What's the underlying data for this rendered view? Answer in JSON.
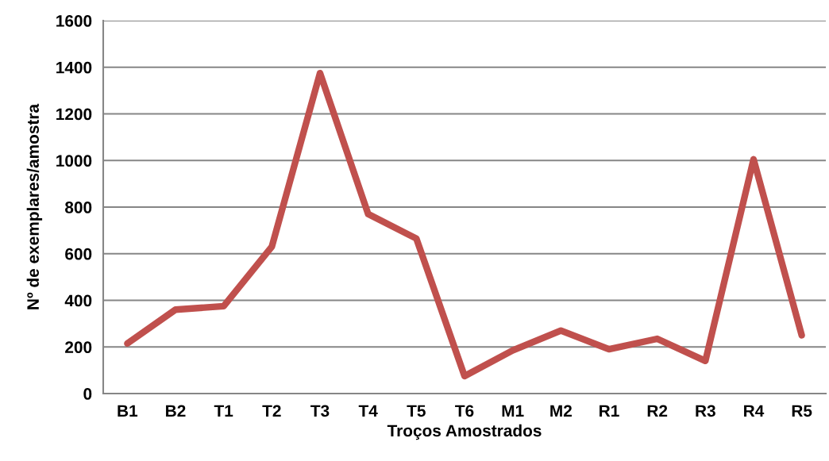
{
  "chart_data": {
    "type": "line",
    "xlabel": "Troços Amostrados",
    "ylabel": "Nº de exemplares/amostra",
    "categories": [
      "B1",
      "B2",
      "T1",
      "T2",
      "T3",
      "T4",
      "T5",
      "T6",
      "M1",
      "M2",
      "R1",
      "R2",
      "R3",
      "R4",
      "R5"
    ],
    "series": [
      {
        "color": "#c0504d",
        "values": [
          215,
          360,
          375,
          630,
          1375,
          770,
          665,
          75,
          185,
          270,
          190,
          235,
          140,
          1005,
          250
        ]
      }
    ],
    "ylim": [
      0,
      1600
    ],
    "yticks": [
      0,
      200,
      400,
      600,
      800,
      1000,
      1200,
      1400,
      1600
    ],
    "grid": "y",
    "marker": "none",
    "line_style": "solid"
  }
}
